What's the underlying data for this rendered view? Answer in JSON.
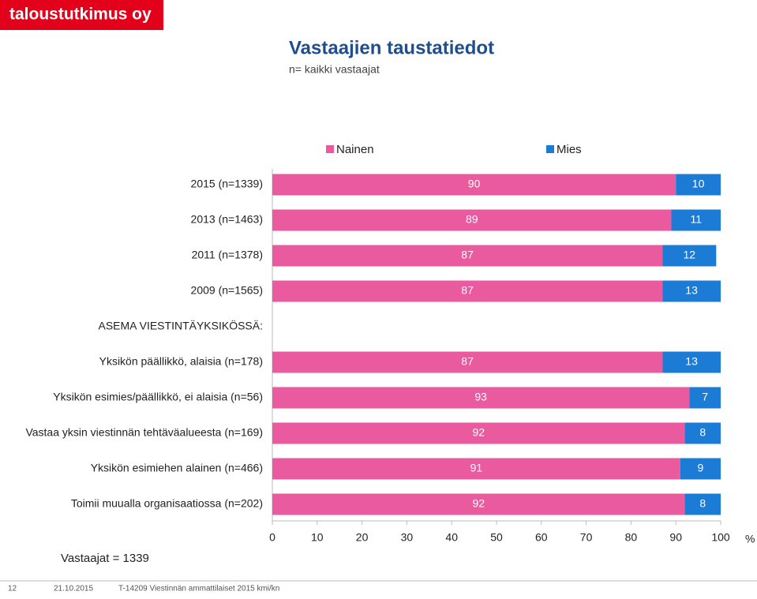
{
  "logo": "taloustutkimus oy",
  "footer": {
    "page": "12",
    "date": "21.10.2015",
    "project": "T-14209 Viestinnän ammattilaiset 2015 kmi/kn"
  },
  "chart_data": {
    "type": "stacked-bar-horizontal",
    "title": "Vastaajien taustatiedot",
    "subtitle": "n= kaikki vastaajat",
    "annotation": "Vastaajat = 1339",
    "xlabel": "%",
    "categories": [
      "2015 (n=1339)",
      "2013 (n=1463)",
      "2011 (n=1378)",
      "2009 (n=1565)",
      "ASEMA VIESTINTÄYKSIKÖSSÄ:",
      "Yksikön päällikkö, alaisia (n=178)",
      "Yksikön esimies/päällikkö, ei alaisia (n=56)",
      "Vastaa yksin viestinnän tehtäväalueesta (n=169)",
      "Yksikön esimiehen alainen (n=466)",
      "Toimii muualla organisaatiossa (n=202)"
    ],
    "series": [
      {
        "name": "Nainen",
        "color": "#ea5a9f",
        "values": [
          90,
          89,
          87,
          87,
          null,
          87,
          93,
          92,
          91,
          92
        ]
      },
      {
        "name": "Mies",
        "color": "#1c7cd5",
        "values": [
          10,
          11,
          12,
          13,
          null,
          13,
          7,
          8,
          9,
          8
        ]
      }
    ],
    "xlim": [
      0,
      100
    ],
    "xticks": [
      0,
      10,
      20,
      30,
      40,
      50,
      60,
      70,
      80,
      90,
      100
    ],
    "legend": "top"
  }
}
